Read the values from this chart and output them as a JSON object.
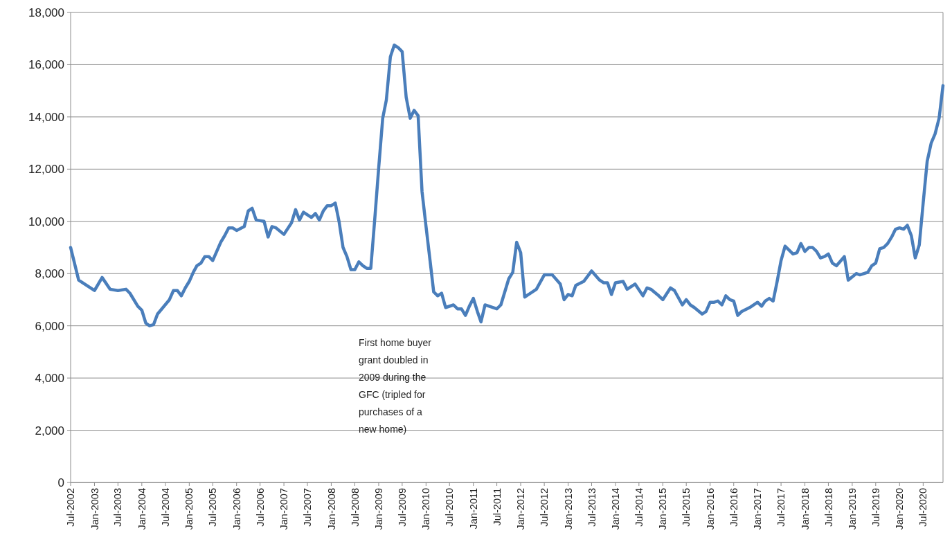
{
  "chart_data": {
    "type": "line",
    "x": [
      "2002-07",
      "2002-09",
      "2002-10",
      "2003-01",
      "2003-03",
      "2003-05",
      "2003-07",
      "2003-09",
      "2003-10",
      "2003-12",
      "2004-01",
      "2004-02",
      "2004-03",
      "2004-04",
      "2004-05",
      "2004-08",
      "2004-09",
      "2004-10",
      "2004-11",
      "2004-12",
      "2005-01",
      "2005-02",
      "2005-03",
      "2005-04",
      "2005-05",
      "2005-06",
      "2005-07",
      "2005-09",
      "2005-10",
      "2005-11",
      "2005-12",
      "2006-01",
      "2006-03",
      "2006-04",
      "2006-05",
      "2006-06",
      "2006-08",
      "2006-09",
      "2006-10",
      "2006-11",
      "2007-01",
      "2007-03",
      "2007-04",
      "2007-05",
      "2007-06",
      "2007-08",
      "2007-09",
      "2007-10",
      "2007-11",
      "2007-12",
      "2008-01",
      "2008-02",
      "2008-03",
      "2008-04",
      "2008-05",
      "2008-06",
      "2008-07",
      "2008-08",
      "2008-09",
      "2008-10",
      "2008-11",
      "2008-12",
      "2009-01",
      "2009-02",
      "2009-03",
      "2009-04",
      "2009-05",
      "2009-06",
      "2009-07",
      "2009-08",
      "2009-09",
      "2009-10",
      "2009-11",
      "2009-12",
      "2010-01",
      "2010-02",
      "2010-03",
      "2010-04",
      "2010-05",
      "2010-06",
      "2010-08",
      "2010-09",
      "2010-10",
      "2010-11",
      "2010-12",
      "2011-01",
      "2011-02",
      "2011-03",
      "2011-04",
      "2011-07",
      "2011-08",
      "2011-10",
      "2011-11",
      "2011-12",
      "2012-01",
      "2012-02",
      "2012-05",
      "2012-07",
      "2012-09",
      "2012-11",
      "2012-12",
      "2013-01",
      "2013-02",
      "2013-03",
      "2013-05",
      "2013-07",
      "2013-09",
      "2013-10",
      "2013-11",
      "2013-12",
      "2014-01",
      "2014-03",
      "2014-04",
      "2014-06",
      "2014-08",
      "2014-09",
      "2014-10",
      "2014-12",
      "2015-01",
      "2015-03",
      "2015-04",
      "2015-06",
      "2015-07",
      "2015-08",
      "2015-09",
      "2015-11",
      "2015-12",
      "2016-01",
      "2016-02",
      "2016-03",
      "2016-04",
      "2016-05",
      "2016-06",
      "2016-07",
      "2016-08",
      "2016-09",
      "2016-11",
      "2017-01",
      "2017-02",
      "2017-03",
      "2017-04",
      "2017-05",
      "2017-06",
      "2017-07",
      "2017-08",
      "2017-10",
      "2017-11",
      "2017-12",
      "2018-01",
      "2018-02",
      "2018-03",
      "2018-04",
      "2018-05",
      "2018-06",
      "2018-07",
      "2018-08",
      "2018-09",
      "2018-11",
      "2018-12",
      "2019-02",
      "2019-03",
      "2019-05",
      "2019-06",
      "2019-07",
      "2019-08",
      "2019-09",
      "2019-10",
      "2019-11",
      "2019-12",
      "2020-01",
      "2020-02",
      "2020-03",
      "2020-04",
      "2020-05",
      "2020-06",
      "2020-07",
      "2020-08",
      "2020-09",
      "2020-10",
      "2020-11",
      "2020-12"
    ],
    "series": [
      {
        "color": "#4a7ebb",
        "values": [
          9000,
          7750,
          7650,
          7350,
          7850,
          7400,
          7350,
          7400,
          7250,
          6750,
          6600,
          6100,
          6000,
          6050,
          6450,
          7000,
          7350,
          7350,
          7150,
          7450,
          7700,
          8050,
          8300,
          8400,
          8650,
          8650,
          8500,
          9200,
          9450,
          9750,
          9750,
          9650,
          9800,
          10400,
          10500,
          10050,
          10000,
          9400,
          9800,
          9750,
          9500,
          9950,
          10450,
          10050,
          10350,
          10150,
          10300,
          10050,
          10400,
          10600,
          10600,
          10700,
          10000,
          9000,
          8650,
          8150,
          8150,
          8450,
          8300,
          8200,
          8200,
          10050,
          12050,
          13950,
          14650,
          16300,
          16750,
          16650,
          16500,
          14750,
          13950,
          14250,
          14050,
          11150,
          9800,
          8500,
          7300,
          7150,
          7250,
          6700,
          6800,
          6650,
          6650,
          6400,
          6750,
          7050,
          6550,
          6150,
          6800,
          6650,
          6800,
          7800,
          8050,
          9200,
          8800,
          7100,
          7400,
          7950,
          7950,
          7600,
          7000,
          7200,
          7150,
          7550,
          7700,
          8100,
          7750,
          7650,
          7650,
          7200,
          7650,
          7700,
          7400,
          7600,
          7150,
          7450,
          7400,
          7150,
          7000,
          7450,
          7350,
          6800,
          7000,
          6800,
          6700,
          6450,
          6550,
          6900,
          6900,
          6950,
          6800,
          7150,
          7000,
          6950,
          6400,
          6550,
          6700,
          6900,
          6750,
          6950,
          7050,
          6950,
          7700,
          8500,
          9050,
          8750,
          8800,
          9150,
          8850,
          9000,
          9000,
          8850,
          8600,
          8650,
          8750,
          8400,
          8300,
          8650,
          7750,
          8000,
          7950,
          8050,
          8300,
          8400,
          8950,
          9000,
          9150,
          9400,
          9700,
          9750,
          9700,
          9850,
          9450,
          8600,
          9100,
          10700,
          12300,
          13000,
          13350,
          13950,
          15200
        ]
      }
    ],
    "xlim": [
      "2002-07",
      "2020-12"
    ],
    "xticks": [
      {
        "value": "2002-07",
        "label": "Jul-2002"
      },
      {
        "value": "2003-01",
        "label": "Jan-2003"
      },
      {
        "value": "2003-07",
        "label": "Jul-2003"
      },
      {
        "value": "2004-01",
        "label": "Jan-2004"
      },
      {
        "value": "2004-07",
        "label": "Jul-2004"
      },
      {
        "value": "2005-01",
        "label": "Jan-2005"
      },
      {
        "value": "2005-07",
        "label": "Jul-2005"
      },
      {
        "value": "2006-01",
        "label": "Jan-2006"
      },
      {
        "value": "2006-07",
        "label": "Jul-2006"
      },
      {
        "value": "2007-01",
        "label": "Jan-2007"
      },
      {
        "value": "2007-07",
        "label": "Jul-2007"
      },
      {
        "value": "2008-01",
        "label": "Jan-2008"
      },
      {
        "value": "2008-07",
        "label": "Jul-2008"
      },
      {
        "value": "2009-01",
        "label": "Jan-2009"
      },
      {
        "value": "2009-07",
        "label": "Jul-2009"
      },
      {
        "value": "2010-01",
        "label": "Jan-2010"
      },
      {
        "value": "2010-07",
        "label": "Jul-2010"
      },
      {
        "value": "2011-01",
        "label": "Jan-2011"
      },
      {
        "value": "2011-07",
        "label": "Jul-2011"
      },
      {
        "value": "2012-01",
        "label": "Jan-2012"
      },
      {
        "value": "2012-07",
        "label": "Jul-2012"
      },
      {
        "value": "2013-01",
        "label": "Jan-2013"
      },
      {
        "value": "2013-07",
        "label": "Jul-2013"
      },
      {
        "value": "2014-01",
        "label": "Jan-2014"
      },
      {
        "value": "2014-07",
        "label": "Jul-2014"
      },
      {
        "value": "2015-01",
        "label": "Jan-2015"
      },
      {
        "value": "2015-07",
        "label": "Jul-2015"
      },
      {
        "value": "2016-01",
        "label": "Jan-2016"
      },
      {
        "value": "2016-07",
        "label": "Jul-2016"
      },
      {
        "value": "2017-01",
        "label": "Jan-2017"
      },
      {
        "value": "2017-07",
        "label": "Jul-2017"
      },
      {
        "value": "2018-01",
        "label": "Jan-2018"
      },
      {
        "value": "2018-07",
        "label": "Jul-2018"
      },
      {
        "value": "2019-01",
        "label": "Jan-2019"
      },
      {
        "value": "2019-07",
        "label": "Jul-2019"
      },
      {
        "value": "2020-01",
        "label": "Jan-2020"
      },
      {
        "value": "2020-07",
        "label": "Jul-2020"
      }
    ],
    "ylim": [
      0,
      18000
    ],
    "yticks": [
      {
        "value": 0,
        "label": "0"
      },
      {
        "value": 2000,
        "label": "2,000"
      },
      {
        "value": 4000,
        "label": "4,000"
      },
      {
        "value": 6000,
        "label": "6,000"
      },
      {
        "value": 8000,
        "label": "8,000"
      },
      {
        "value": 10000,
        "label": "10,000"
      },
      {
        "value": 12000,
        "label": "12,000"
      },
      {
        "value": 14000,
        "label": "14,000"
      },
      {
        "value": 16000,
        "label": "16,000"
      },
      {
        "value": 18000,
        "label": "18,000"
      }
    ],
    "grid": "y",
    "marker": "none",
    "line_style": "solid",
    "annotations": [
      "First home buyer grant doubled in 2009 during the GFC (tripled for purchases of a new home)"
    ]
  }
}
